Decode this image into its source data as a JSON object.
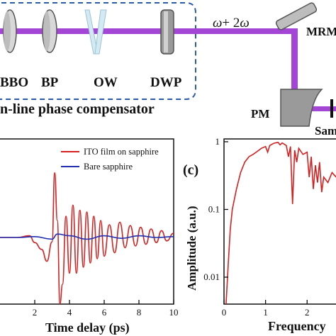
{
  "setup": {
    "components": {
      "bbo": "BBO",
      "bp": "BP",
      "ow": "OW",
      "dwp": "DWP",
      "mrm": "MRM",
      "pm": "PM",
      "sample": "Sam"
    },
    "beam_label_omega": "ω",
    "beam_label_plus": "+ 2",
    "beam_label_omega2": "ω",
    "box_caption": "n-line phase compensator",
    "colors": {
      "beam": "#a346d6",
      "box": "#2a5aa8"
    }
  },
  "panel_c_label": "(c)",
  "chart_data": [
    {
      "type": "line",
      "xlabel": "Time delay (ps)",
      "ylabel": "",
      "x_ticks": [
        "2",
        "4",
        "6",
        "8",
        "10"
      ],
      "xlim": [
        0,
        10
      ],
      "legend_position": "top-right",
      "series": [
        {
          "name": "ITO film on sapphire",
          "color": "#d42020",
          "x": [
            0,
            1,
            1.7,
            2.0,
            2.4,
            2.7,
            3.0,
            3.15,
            3.3,
            3.45,
            3.6,
            3.8,
            4.0,
            4.2,
            4.4,
            4.6,
            4.8,
            5.0,
            5.2,
            5.4,
            5.6,
            5.8,
            6.0,
            6.3,
            6.6,
            6.9,
            7.2,
            7.5,
            7.8,
            8.1,
            8.4,
            8.7,
            9.0,
            9.3,
            9.6,
            10
          ],
          "y": [
            0,
            0,
            0.02,
            -0.06,
            -0.14,
            -0.28,
            -0.05,
            0.76,
            0.2,
            -0.78,
            -0.55,
            0.25,
            -0.42,
            0.38,
            -0.42,
            0.32,
            -0.35,
            0.3,
            -0.3,
            0.25,
            -0.25,
            0.2,
            -0.22,
            0.15,
            -0.18,
            0.18,
            -0.12,
            0.14,
            -0.1,
            0.12,
            -0.08,
            0.1,
            -0.06,
            0.08,
            -0.04,
            0.05
          ]
        },
        {
          "name": "Bare sapphire",
          "color": "#1f2fb0",
          "x": [
            0,
            1,
            2,
            3,
            3.3,
            4,
            5,
            6,
            7,
            8,
            9,
            10
          ],
          "y": [
            0,
            0,
            0.01,
            -0.02,
            0.04,
            0.02,
            -0.02,
            0.02,
            -0.01,
            0.02,
            0.0,
            0.01
          ]
        }
      ]
    },
    {
      "type": "line",
      "xlabel": "Frequency",
      "ylabel": "Amplitude (a.u.)",
      "y_ticks": [
        "0.01",
        "0.1",
        "1"
      ],
      "x_ticks": [
        "0",
        "1",
        "2"
      ],
      "yscale": "log",
      "ylim": [
        0.004,
        1.1
      ],
      "series": [
        {
          "name": "",
          "color": "#d42020",
          "x": [
            0.05,
            0.1,
            0.15,
            0.2,
            0.3,
            0.4,
            0.5,
            0.6,
            0.7,
            0.8,
            0.9,
            1.0,
            1.05,
            1.1,
            1.2,
            1.3,
            1.35,
            1.4,
            1.5,
            1.55,
            1.6,
            1.65,
            1.7,
            1.75,
            1.8,
            1.9,
            2.0,
            2.05,
            2.1,
            2.15,
            2.2,
            2.25,
            2.3,
            2.35,
            2.4,
            2.5,
            2.6,
            2.7
          ],
          "y": [
            0.004,
            0.015,
            0.05,
            0.1,
            0.2,
            0.35,
            0.5,
            0.6,
            0.65,
            0.72,
            0.8,
            0.85,
            0.7,
            0.88,
            0.95,
            0.98,
            0.9,
            0.96,
            0.88,
            0.6,
            0.85,
            0.12,
            0.75,
            0.5,
            0.8,
            0.65,
            0.7,
            0.3,
            0.6,
            0.2,
            0.45,
            0.25,
            0.5,
            0.18,
            0.3,
            0.25,
            0.35,
            0.3
          ]
        }
      ]
    }
  ]
}
